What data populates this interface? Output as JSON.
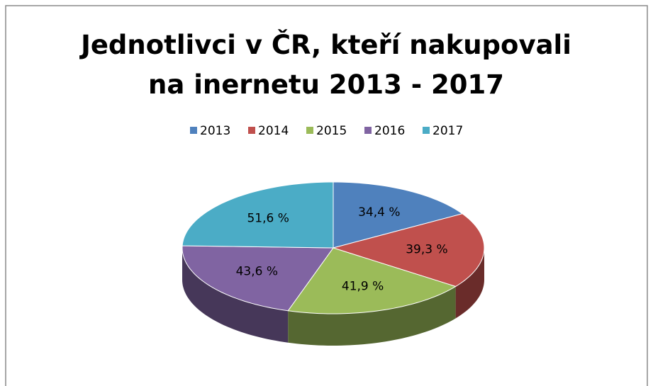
{
  "chart_data": {
    "type": "pie",
    "title": "Jednotlivci v ČR, kteří nakupovali na inernetu 2013 - 2017",
    "categories": [
      "2013",
      "2014",
      "2015",
      "2016",
      "2017"
    ],
    "values": [
      34.4,
      39.3,
      41.9,
      43.6,
      51.6
    ],
    "value_labels": [
      "34,4 %",
      "39,3 %",
      "41,9 %",
      "43,6 %",
      "51,6 %"
    ],
    "colors": [
      "#4f81bd",
      "#c0504d",
      "#9bbb59",
      "#8064a2",
      "#4bacc6"
    ],
    "legend": "top"
  }
}
